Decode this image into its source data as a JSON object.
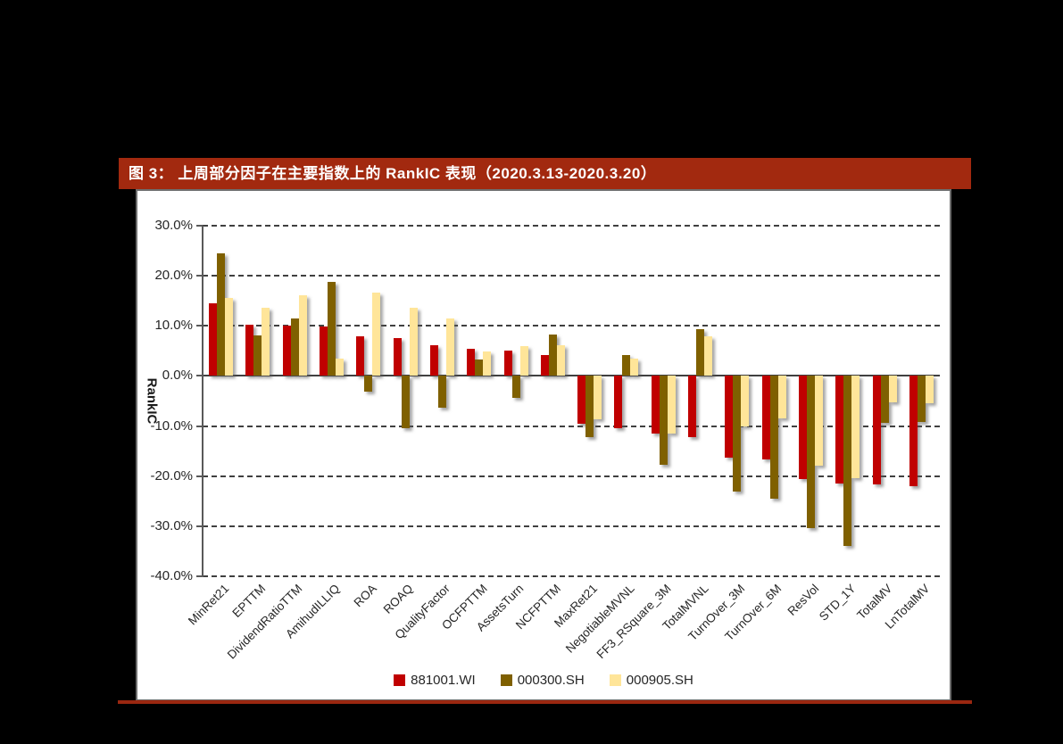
{
  "title": {
    "text": "图 3： 上周部分因子在主要指数上的 RankIC 表现（2020.3.13-2020.3.20）"
  },
  "colors": {
    "title_bar": "#A2290F",
    "bottom_rule": "#9A2710",
    "grid": "#404040",
    "axis": "#595959",
    "series_881001": "#C00000",
    "series_000300": "#7F6000",
    "series_000905": "#FFE599"
  },
  "chart_data": {
    "type": "bar",
    "title": "",
    "xlabel": "",
    "ylabel": "RankIC",
    "ylim": [
      -40,
      30
    ],
    "ytick_step": 10,
    "grid": "horizontal-dashed",
    "legend_position": "bottom",
    "yticks": [
      "30.0%",
      "20.0%",
      "10.0%",
      "0.0%",
      "-10.0%",
      "-20.0%",
      "-30.0%",
      "-40.0%"
    ],
    "categories": [
      "MinRet21",
      "EPTTM",
      "DividendRatioTTM",
      "AmihudILLIQ",
      "ROA",
      "ROAQ",
      "QualityFactor",
      "OCFPTTM",
      "AssetsTurn",
      "NCFPTTM",
      "MaxRet21",
      "NegotiableMVNL",
      "FF3_RSquare_3M",
      "TotalMVNL",
      "TurnOver_3M",
      "TurnOver_6M",
      "ResVol",
      "STD_1Y",
      "TotalMV",
      "LnTotalMV"
    ],
    "series": [
      {
        "name": "881001.WI",
        "color": "#C00000",
        "values": [
          14.5,
          10.3,
          10.0,
          9.9,
          8.0,
          7.6,
          6.2,
          5.5,
          5.0,
          4.2,
          -9.5,
          -10.5,
          -11.5,
          -12.2,
          -16.4,
          -16.6,
          -20.6,
          -21.4,
          -21.7,
          -22.0
        ]
      },
      {
        "name": "000300.SH",
        "color": "#7F6000",
        "values": [
          24.5,
          8.1,
          11.4,
          18.8,
          -3.2,
          -10.5,
          -6.3,
          3.2,
          -4.3,
          8.2,
          -12.3,
          4.2,
          -17.8,
          9.3,
          -23.0,
          -24.5,
          -30.3,
          -33.9,
          -9.4,
          -9.2
        ]
      },
      {
        "name": "000905.SH",
        "color": "#FFE599",
        "values": [
          15.5,
          13.7,
          16.1,
          3.5,
          16.7,
          13.6,
          11.5,
          4.8,
          6.0,
          6.1,
          -8.7,
          3.5,
          -11.5,
          7.9,
          -10.1,
          -8.4,
          -17.9,
          -20.4,
          -5.2,
          -5.4
        ]
      }
    ]
  }
}
